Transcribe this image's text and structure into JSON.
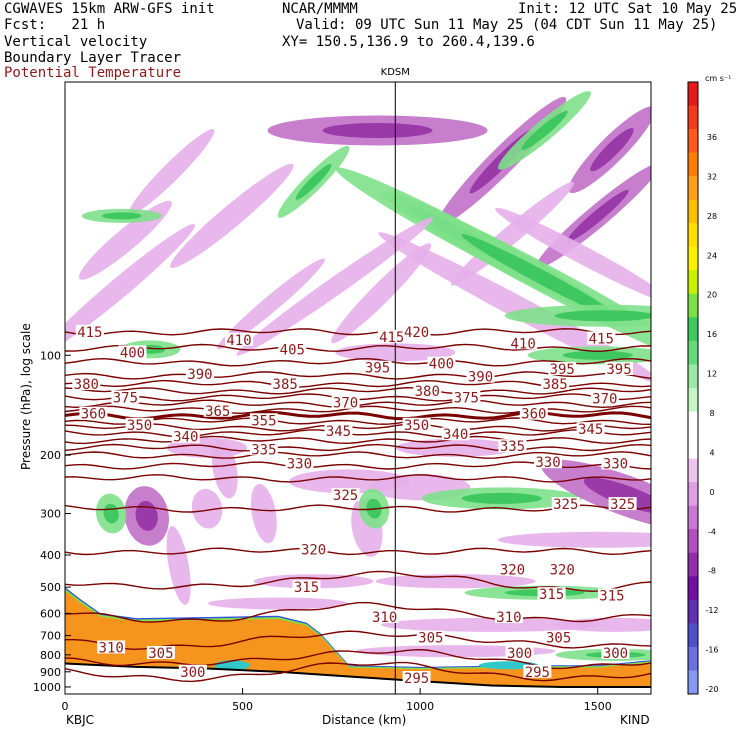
{
  "header": {
    "model": "CGWAVES 15km ARW-GFS init",
    "org": "NCAR/MMMM",
    "init": "Init: 12 UTC Sat 10 May 25",
    "fcst": "Fcst:   21 h",
    "valid": "Valid: 09 UTC Sun 11 May 25 (04 CDT Sun 11 May 25)",
    "xy": "XY= 150.5,136.9 to 260.4,139.6",
    "legend": [
      "Vertical velocity",
      "Boundary Layer Tracer",
      "Potential Temperature"
    ]
  },
  "colors": {
    "theta": "#7a0000",
    "bl_orange": "#f7941d",
    "green": "#7ee089",
    "purple_light": "#e6b0ea"
  },
  "chart_data": {
    "type": "heatmap",
    "xlabel": "Distance (km)",
    "ylabel": "Pressure (hPa), log scale",
    "xlim": [
      0,
      1650
    ],
    "ylim": [
      1050,
      15
    ],
    "x_ticks": [
      "0",
      "500",
      "1000",
      "1500"
    ],
    "y_ticks": [
      "100",
      "200",
      "300",
      "400",
      "500",
      "600",
      "700",
      "800",
      "900",
      "1000"
    ],
    "left_station": "KBJC",
    "right_station": "KIND",
    "mid_station": "KDSM",
    "mid_station_km": 930,
    "colorbar": {
      "units": "cm s⁻¹",
      "labels": [
        "36",
        "32",
        "28",
        "24",
        "20",
        "16",
        "12",
        "8",
        "4",
        "0",
        "-4",
        "-8",
        "-12",
        "-16",
        "-20"
      ],
      "colors": [
        "#e31a1c",
        "#f03b20",
        "#fd5a1e",
        "#ff7f00",
        "#ff9f1c",
        "#ffbf00",
        "#ffdf00",
        "#fff200",
        "#c8f000",
        "#7ee049",
        "#40c860",
        "#6ad87a",
        "#9ce8a4",
        "#c4f4c8",
        "#ffffff",
        "#ffffff",
        "#ecc4ee",
        "#dea0e2",
        "#c878d0",
        "#b050bc",
        "#9030a8",
        "#7010a0",
        "#6030b0",
        "#5050c8",
        "#6a70e0",
        "#8898f0"
      ]
    },
    "theta_isentropes": [
      {
        "theta": "415",
        "p": 85
      },
      {
        "theta": "410",
        "p": 95
      },
      {
        "theta": "405",
        "p": 105
      },
      {
        "theta": "400",
        "p": 115
      },
      {
        "theta": "395",
        "p": 122
      },
      {
        "theta": "390",
        "p": 128
      },
      {
        "theta": "385",
        "p": 134
      },
      {
        "theta": "380",
        "p": 140
      },
      {
        "theta": "375",
        "p": 146
      },
      {
        "theta": "370",
        "p": 152
      },
      {
        "theta": "365",
        "p": 158
      },
      {
        "theta": "360",
        "p": 165
      },
      {
        "theta": "355",
        "p": 172
      },
      {
        "theta": "350",
        "p": 180
      },
      {
        "theta": "345",
        "p": 190
      },
      {
        "theta": "340",
        "p": 200
      },
      {
        "theta": "335",
        "p": 215
      },
      {
        "theta": "330",
        "p": 235
      },
      {
        "theta": "325",
        "p": 290
      },
      {
        "theta": "320",
        "p": 390
      },
      {
        "theta": "315",
        "p": 480
      },
      {
        "theta": "310",
        "p": 600
      },
      {
        "theta": "305",
        "p": 720
      },
      {
        "theta": "300",
        "p": 820
      },
      {
        "theta": "295",
        "p": 900
      }
    ],
    "theta_labels": [
      {
        "t": "415",
        "x": 70,
        "p": 85
      },
      {
        "t": "410",
        "x": 490,
        "p": 90
      },
      {
        "t": "415",
        "x": 920,
        "p": 88
      },
      {
        "t": "420",
        "x": 990,
        "p": 85
      },
      {
        "t": "410",
        "x": 1290,
        "p": 92
      },
      {
        "t": "415",
        "x": 1510,
        "p": 89
      },
      {
        "t": "400",
        "x": 190,
        "p": 98
      },
      {
        "t": "405",
        "x": 640,
        "p": 96
      },
      {
        "t": "400",
        "x": 1060,
        "p": 106
      },
      {
        "t": "395",
        "x": 880,
        "p": 109
      },
      {
        "t": "395",
        "x": 1400,
        "p": 110
      },
      {
        "t": "395",
        "x": 1560,
        "p": 110
      },
      {
        "t": "390",
        "x": 380,
        "p": 114
      },
      {
        "t": "390",
        "x": 1170,
        "p": 116
      },
      {
        "t": "380",
        "x": 60,
        "p": 122
      },
      {
        "t": "385",
        "x": 620,
        "p": 122
      },
      {
        "t": "385",
        "x": 1380,
        "p": 122
      },
      {
        "t": "380",
        "x": 1020,
        "p": 128
      },
      {
        "t": "375",
        "x": 170,
        "p": 134
      },
      {
        "t": "370",
        "x": 790,
        "p": 139
      },
      {
        "t": "375",
        "x": 1130,
        "p": 134
      },
      {
        "t": "370",
        "x": 1520,
        "p": 135
      },
      {
        "t": "360",
        "x": 80,
        "p": 150
      },
      {
        "t": "365",
        "x": 430,
        "p": 147
      },
      {
        "t": "360",
        "x": 1320,
        "p": 150
      },
      {
        "t": "350",
        "x": 210,
        "p": 162
      },
      {
        "t": "355",
        "x": 560,
        "p": 157
      },
      {
        "t": "350",
        "x": 990,
        "p": 162
      },
      {
        "t": "345",
        "x": 770,
        "p": 169
      },
      {
        "t": "345",
        "x": 1480,
        "p": 167
      },
      {
        "t": "340",
        "x": 340,
        "p": 176
      },
      {
        "t": "340",
        "x": 1100,
        "p": 173
      },
      {
        "t": "335",
        "x": 560,
        "p": 192
      },
      {
        "t": "335",
        "x": 1260,
        "p": 188
      },
      {
        "t": "330",
        "x": 660,
        "p": 212
      },
      {
        "t": "330",
        "x": 1360,
        "p": 210
      },
      {
        "t": "330",
        "x": 1550,
        "p": 212
      },
      {
        "t": "325",
        "x": 790,
        "p": 264
      },
      {
        "t": "325",
        "x": 1410,
        "p": 281
      },
      {
        "t": "325",
        "x": 1570,
        "p": 281
      },
      {
        "t": "320",
        "x": 700,
        "p": 385
      },
      {
        "t": "320",
        "x": 1260,
        "p": 442
      },
      {
        "t": "320",
        "x": 1400,
        "p": 442
      },
      {
        "t": "315",
        "x": 680,
        "p": 500
      },
      {
        "t": "315",
        "x": 1370,
        "p": 525
      },
      {
        "t": "315",
        "x": 1540,
        "p": 530
      },
      {
        "t": "310",
        "x": 900,
        "p": 615
      },
      {
        "t": "310",
        "x": 1250,
        "p": 615
      },
      {
        "t": "310",
        "x": 130,
        "p": 760
      },
      {
        "t": "305",
        "x": 1030,
        "p": 710
      },
      {
        "t": "305",
        "x": 1390,
        "p": 710
      },
      {
        "t": "305",
        "x": 270,
        "p": 790
      },
      {
        "t": "300",
        "x": 1280,
        "p": 790
      },
      {
        "t": "300",
        "x": 1550,
        "p": 790
      },
      {
        "t": "300",
        "x": 360,
        "p": 900
      },
      {
        "t": "295",
        "x": 990,
        "p": 940
      },
      {
        "t": "295",
        "x": 1330,
        "p": 900
      }
    ],
    "vv_blobs": [
      {
        "x": 170,
        "p": 45,
        "w": 120,
        "h": 22,
        "a": -40,
        "s": "p"
      },
      {
        "x": 470,
        "p": 38,
        "w": 160,
        "h": 22,
        "a": -40,
        "s": "p"
      },
      {
        "x": 300,
        "p": 28,
        "w": 120,
        "h": 18,
        "a": -45,
        "s": "p"
      },
      {
        "x": 880,
        "p": 21,
        "w": 220,
        "h": 30,
        "a": 0,
        "s": "p2"
      },
      {
        "x": 1230,
        "p": 26,
        "w": 180,
        "h": 26,
        "a": -45,
        "s": "p2"
      },
      {
        "x": 1540,
        "p": 24,
        "w": 120,
        "h": 26,
        "a": -45,
        "s": "p2"
      },
      {
        "x": 1350,
        "p": 21,
        "w": 120,
        "h": 20,
        "a": -40,
        "s": "g"
      },
      {
        "x": 1260,
        "p": 43,
        "w": 160,
        "h": 18,
        "a": -40,
        "s": "p"
      },
      {
        "x": 1500,
        "p": 38,
        "w": 160,
        "h": 22,
        "a": -40,
        "s": "p2"
      },
      {
        "x": 1160,
        "p": 46,
        "w": 320,
        "h": 26,
        "a": 28,
        "s": "g"
      },
      {
        "x": 1340,
        "p": 58,
        "w": 360,
        "h": 28,
        "a": 28,
        "s": "g"
      },
      {
        "x": 1460,
        "p": 50,
        "w": 200,
        "h": 18,
        "a": 28,
        "s": "p"
      },
      {
        "x": 1280,
        "p": 72,
        "w": 320,
        "h": 22,
        "a": 28,
        "s": "p"
      },
      {
        "x": 1520,
        "p": 76,
        "w": 200,
        "h": 22,
        "a": 0,
        "s": "g"
      },
      {
        "x": 760,
        "p": 62,
        "w": 240,
        "h": 18,
        "a": -35,
        "s": "p"
      },
      {
        "x": 580,
        "p": 70,
        "w": 140,
        "h": 16,
        "a": -40,
        "s": "p"
      },
      {
        "x": 150,
        "p": 63,
        "w": 200,
        "h": 20,
        "a": -40,
        "s": "p"
      },
      {
        "x": 890,
        "p": 65,
        "w": 140,
        "h": 20,
        "a": -45,
        "s": "p"
      },
      {
        "x": 700,
        "p": 30,
        "w": 100,
        "h": 18,
        "a": -45,
        "s": "g"
      },
      {
        "x": 160,
        "p": 38,
        "w": 80,
        "h": 14,
        "a": 0,
        "s": "g"
      },
      {
        "x": 240,
        "p": 96,
        "w": 60,
        "h": 18,
        "a": 0,
        "s": "g"
      },
      {
        "x": 930,
        "p": 98,
        "w": 120,
        "h": 18,
        "a": 0,
        "s": "p"
      },
      {
        "x": 1500,
        "p": 100,
        "w": 140,
        "h": 18,
        "a": 0,
        "s": "g"
      },
      {
        "x": 230,
        "p": 305,
        "w": 60,
        "h": 44,
        "a": 80,
        "s": "p2"
      },
      {
        "x": 400,
        "p": 290,
        "w": 40,
        "h": 30,
        "a": 80,
        "s": "p"
      },
      {
        "x": 560,
        "p": 300,
        "w": 60,
        "h": 24,
        "a": 80,
        "s": "p"
      },
      {
        "x": 320,
        "p": 430,
        "w": 80,
        "h": 20,
        "a": 80,
        "s": "p"
      },
      {
        "x": 800,
        "p": 240,
        "w": 120,
        "h": 24,
        "a": 0,
        "s": "p"
      },
      {
        "x": 850,
        "p": 330,
        "w": 60,
        "h": 30,
        "a": 80,
        "s": "p"
      },
      {
        "x": 1000,
        "p": 250,
        "w": 100,
        "h": 26,
        "a": 0,
        "s": "p"
      },
      {
        "x": 1230,
        "p": 270,
        "w": 160,
        "h": 22,
        "a": 0,
        "s": "g"
      },
      {
        "x": 1580,
        "p": 265,
        "w": 180,
        "h": 40,
        "a": 20,
        "s": "p2"
      },
      {
        "x": 1500,
        "p": 360,
        "w": 200,
        "h": 16,
        "a": 0,
        "s": "p"
      },
      {
        "x": 870,
        "p": 290,
        "w": 40,
        "h": 30,
        "a": 80,
        "s": "g"
      },
      {
        "x": 130,
        "p": 300,
        "w": 40,
        "h": 30,
        "a": 80,
        "s": "g"
      },
      {
        "x": 700,
        "p": 480,
        "w": 120,
        "h": 14,
        "a": 0,
        "s": "p"
      },
      {
        "x": 1100,
        "p": 480,
        "w": 160,
        "h": 14,
        "a": 0,
        "s": "p"
      },
      {
        "x": 1350,
        "p": 520,
        "w": 160,
        "h": 14,
        "a": 0,
        "s": "g"
      },
      {
        "x": 600,
        "p": 560,
        "w": 140,
        "h": 12,
        "a": 0,
        "s": "p"
      },
      {
        "x": 1200,
        "p": 650,
        "w": 220,
        "h": 14,
        "a": 0,
        "s": "p"
      },
      {
        "x": 1550,
        "p": 650,
        "w": 120,
        "h": 14,
        "a": 0,
        "s": "p"
      },
      {
        "x": 1100,
        "p": 780,
        "w": 200,
        "h": 12,
        "a": 0,
        "s": "p"
      },
      {
        "x": 1550,
        "p": 800,
        "w": 120,
        "h": 12,
        "a": 0,
        "s": "g"
      },
      {
        "x": 400,
        "p": 190,
        "w": 80,
        "h": 20,
        "a": 0,
        "s": "p"
      },
      {
        "x": 1100,
        "p": 190,
        "w": 120,
        "h": 18,
        "a": 0,
        "s": "p"
      },
      {
        "x": 450,
        "p": 220,
        "w": 60,
        "h": 24,
        "a": 80,
        "s": "p"
      }
    ]
  }
}
